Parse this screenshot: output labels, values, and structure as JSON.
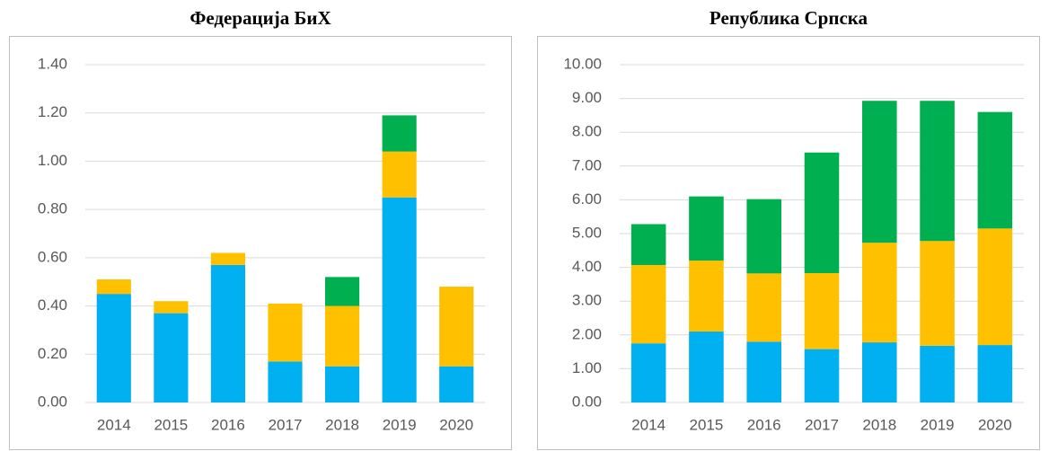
{
  "chart_data": [
    {
      "type": "bar",
      "stacked": true,
      "title": "Федерација БиХ",
      "categories": [
        "2014",
        "2015",
        "2016",
        "2017",
        "2018",
        "2019",
        "2020"
      ],
      "series": [
        {
          "color": "#00b0f0",
          "values": [
            0.45,
            0.37,
            0.57,
            0.17,
            0.15,
            0.85,
            0.15
          ]
        },
        {
          "color": "#ffc000",
          "values": [
            0.06,
            0.05,
            0.05,
            0.24,
            0.25,
            0.19,
            0.33
          ]
        },
        {
          "color": "#00b050",
          "values": [
            null,
            null,
            null,
            null,
            0.12,
            0.15,
            null
          ]
        }
      ],
      "ylim": [
        0,
        1.4
      ],
      "yticks": [
        {
          "value": 0,
          "label": "0.00"
        },
        {
          "value": 0.2,
          "label": "0.20"
        },
        {
          "value": 0.4,
          "label": "0.40"
        },
        {
          "value": 0.6,
          "label": "0.60"
        },
        {
          "value": 0.8,
          "label": "0.80"
        },
        {
          "value": 1,
          "label": "1.00"
        },
        {
          "value": 1.2,
          "label": "1.20"
        },
        {
          "value": 1.4,
          "label": "1.40"
        }
      ],
      "grid": true
    },
    {
      "type": "bar",
      "stacked": true,
      "title": "Република Српска",
      "categories": [
        "2014",
        "2015",
        "2016",
        "2017",
        "2018",
        "2019",
        "2020"
      ],
      "series": [
        {
          "color": "#00b0f0",
          "values": [
            1.75,
            2.1,
            1.8,
            1.58,
            1.78,
            1.68,
            1.7
          ]
        },
        {
          "color": "#ffc000",
          "values": [
            2.32,
            2.1,
            2.02,
            2.25,
            2.95,
            3.1,
            3.45
          ]
        },
        {
          "color": "#00b050",
          "values": [
            1.21,
            1.9,
            2.2,
            3.57,
            4.2,
            4.15,
            3.45
          ]
        }
      ],
      "ylim": [
        0,
        10
      ],
      "yticks": [
        {
          "value": 0,
          "label": "0.00"
        },
        {
          "value": 1,
          "label": "1.00"
        },
        {
          "value": 2,
          "label": "2.00"
        },
        {
          "value": 3,
          "label": "3.00"
        },
        {
          "value": 4,
          "label": "4.00"
        },
        {
          "value": 5,
          "label": "5.00"
        },
        {
          "value": 6,
          "label": "6.00"
        },
        {
          "value": 7,
          "label": "7.00"
        },
        {
          "value": 8,
          "label": "8.00"
        },
        {
          "value": 9,
          "label": "9.00"
        },
        {
          "value": 10,
          "label": "10.00"
        }
      ],
      "grid": true
    }
  ]
}
